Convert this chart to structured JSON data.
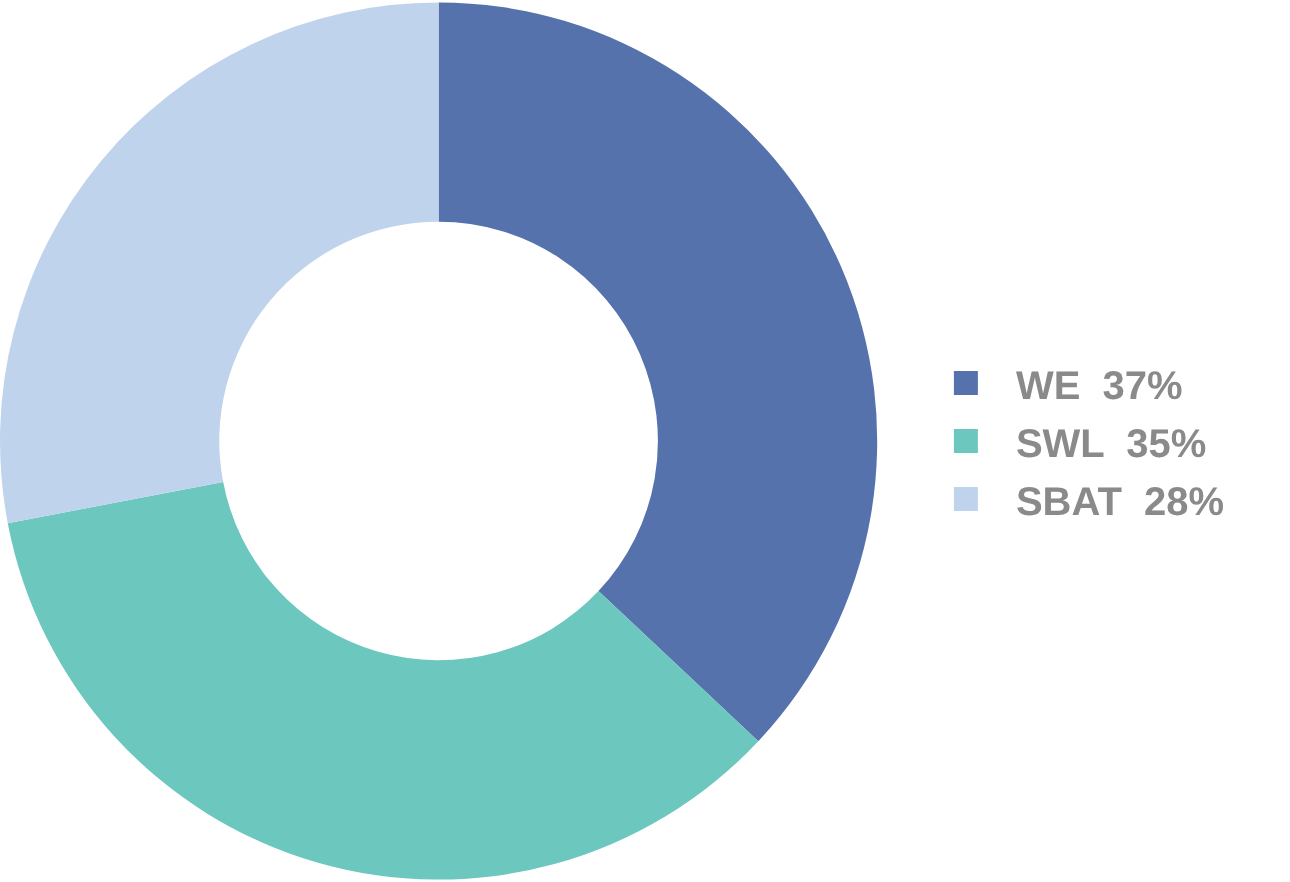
{
  "chart_data": {
    "type": "donut",
    "categories": [
      "WE",
      "SWL",
      "SBAT"
    ],
    "values": [
      37,
      35,
      28
    ],
    "value_labels": [
      "37%",
      "35%",
      "28%"
    ],
    "colors": [
      "#5672ad",
      "#6cc7be",
      "#c0d3ec"
    ],
    "legend": "right"
  }
}
